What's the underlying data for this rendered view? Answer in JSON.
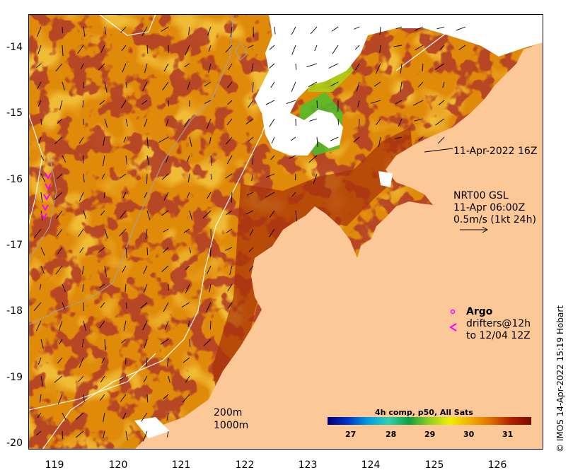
{
  "map": {
    "x_ticks": [
      "119",
      "120",
      "121",
      "122",
      "123",
      "124",
      "125",
      "126"
    ],
    "y_ticks": [
      "-14",
      "-15",
      "-16",
      "-17",
      "-18",
      "-19",
      "-20"
    ],
    "land_color": "#fcc897",
    "cloud_color": "#ffffff",
    "contour_colors": {
      "200m": "#ffffff",
      "1000m": "#a0a0a0"
    }
  },
  "annotations": {
    "sst_time": "11-Apr-2022 16Z",
    "current_line1": "NRT00 GSL",
    "current_line2": "11-Apr 06:00Z",
    "current_line3": "0.5m/s (1kt 24h)",
    "argo_label": "Argo",
    "drifters_line1": "drifters@12h",
    "drifters_line2": "to 12/04 12Z",
    "contour_200": "200m",
    "contour_1000": "1000m",
    "credit": "© IMOS 14-Apr-2022 15:19 Hobart"
  },
  "colorbar": {
    "title": "4h comp, p50, All Sats",
    "ticks": [
      "27",
      "28",
      "29",
      "30",
      "31"
    ],
    "stops": [
      "#00007a",
      "#0033c8",
      "#00a0e0",
      "#30d0b0",
      "#10a040",
      "#90d020",
      "#f0f000",
      "#f0b000",
      "#e07000",
      "#b02000",
      "#7a0a00"
    ]
  }
}
